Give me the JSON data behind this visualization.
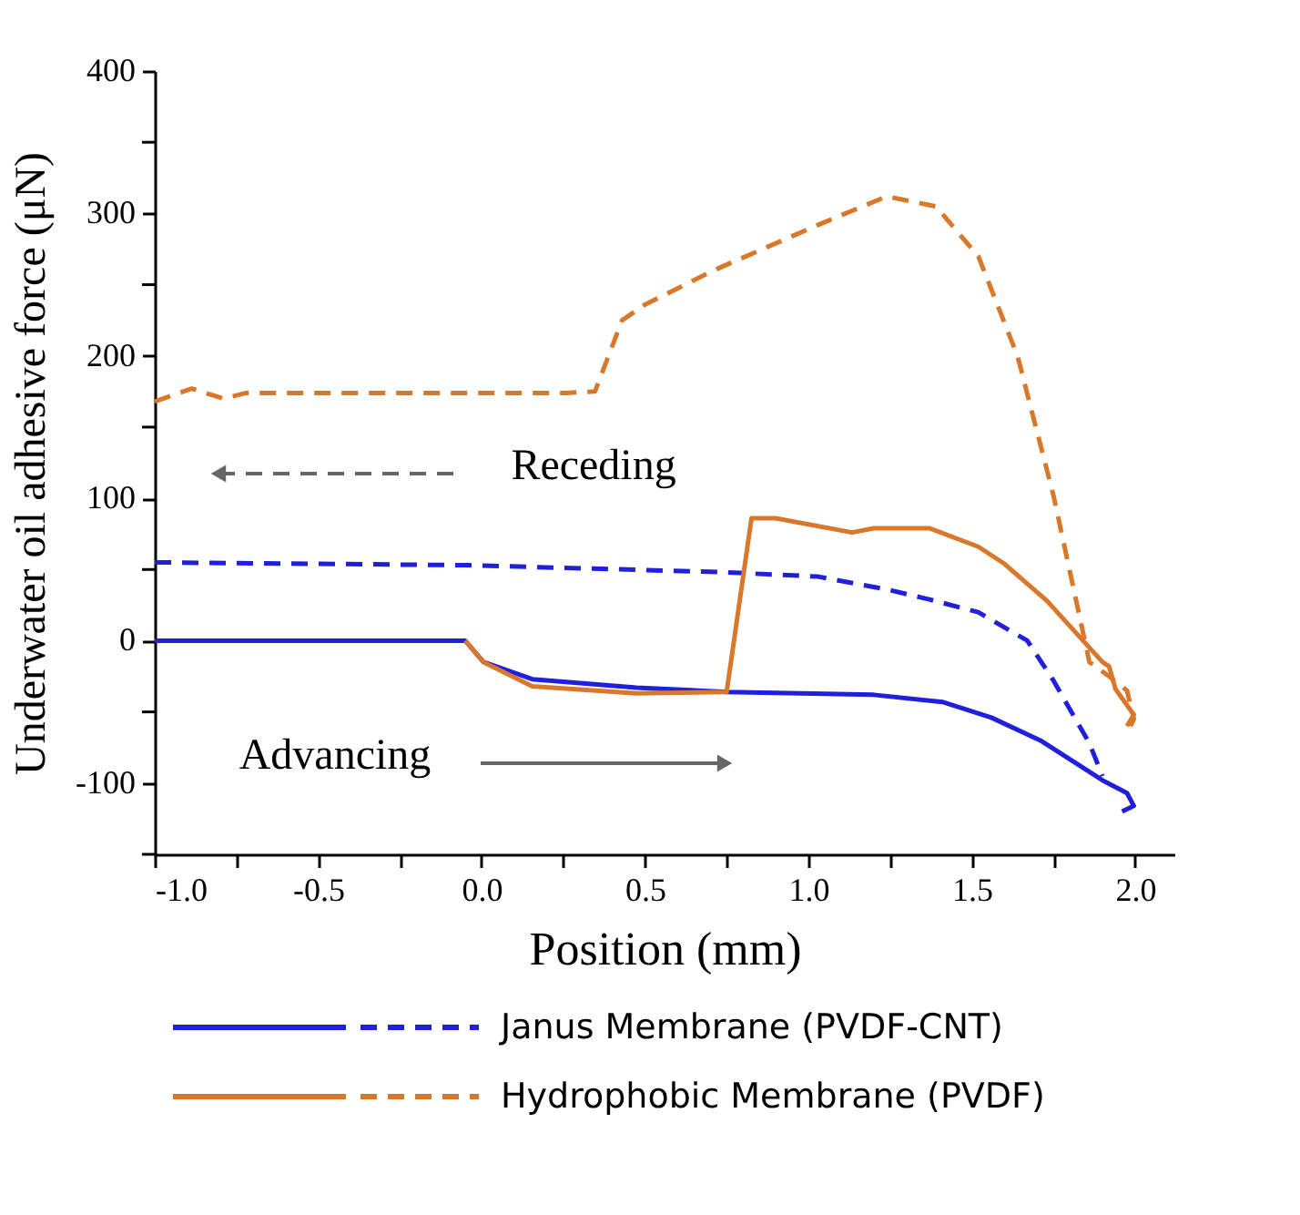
{
  "chart_data": {
    "type": "line",
    "xlabel": "Position (mm)",
    "ylabel": "Underwater oil adhesive force (μN)",
    "xlim": [
      -1.0,
      2.12
    ],
    "ylim": [
      -150,
      400
    ],
    "xticks": [
      {
        "value": -1.0,
        "label": "-1.0"
      },
      {
        "value": -0.75,
        "label": null
      },
      {
        "value": -0.5,
        "label": "-0.5"
      },
      {
        "value": -0.25,
        "label": null
      },
      {
        "value": 0.0,
        "label": "0.0"
      },
      {
        "value": 0.25,
        "label": null
      },
      {
        "value": 0.5,
        "label": "0.5"
      },
      {
        "value": 0.75,
        "label": null
      },
      {
        "value": 1.0,
        "label": "1.0"
      },
      {
        "value": 1.25,
        "label": null
      },
      {
        "value": 1.5,
        "label": "1.5"
      },
      {
        "value": 1.75,
        "label": null
      },
      {
        "value": 2.0,
        "label": "2.0"
      }
    ],
    "yticks": [
      {
        "value": -150,
        "label": null
      },
      -100,
      {
        "value": -50,
        "label": null
      },
      0,
      {
        "value": 50,
        "label": null
      },
      100,
      {
        "value": 150,
        "label": null
      },
      200,
      {
        "value": 250,
        "label": null
      },
      300,
      {
        "value": 350,
        "label": null
      },
      400
    ],
    "grid": false,
    "legend": "bottom",
    "marker": "none",
    "annotations": [
      "Receding",
      "Advancing"
    ],
    "series": [
      {
        "name": "Janus Membrane (PVDF-CNT)",
        "color": "#1f1fdc",
        "line_style": "solid",
        "x": [
          -1.0,
          -0.05,
          0.006,
          0.155,
          0.474,
          0.75,
          1.2,
          1.41,
          1.56,
          1.71,
          1.9,
          1.975,
          1.996,
          1.96
        ],
        "values": [
          0,
          0,
          -15,
          -27,
          -33,
          -36,
          -38,
          -43,
          -54,
          -70,
          -98,
          -107,
          -116,
          -120
        ]
      },
      {
        "color": "#1f1fdc",
        "line_style": "dashed",
        "x": [
          -1.0,
          -0.036,
          0.75,
          1.03,
          1.24,
          1.37,
          1.52,
          1.67,
          1.75,
          1.86,
          1.9
        ],
        "values": [
          55,
          53,
          48,
          45,
          36,
          29,
          20,
          0,
          -28,
          -72,
          -95
        ]
      },
      {
        "name": "Hydrophobic Membrane (PVDF)",
        "color": "#d9782a",
        "line_style": "solid",
        "x": [
          -0.05,
          0.006,
          0.155,
          0.474,
          0.75,
          0.826,
          0.9,
          1.134,
          1.2,
          1.37,
          1.52,
          1.6,
          1.73,
          1.9,
          1.92,
          1.94,
          1.996,
          1.975
        ],
        "values": [
          0,
          -15,
          -32,
          -37,
          -36,
          86,
          86,
          76,
          79,
          79,
          66,
          54,
          28,
          -15,
          -18,
          -34,
          -52,
          -60
        ]
      },
      {
        "color": "#d9782a",
        "line_style": "dashed",
        "x": [
          -1.0,
          -0.887,
          -0.79,
          -0.72,
          0.26,
          0.347,
          0.43,
          0.5,
          0.71,
          1.03,
          1.24,
          1.39,
          1.52,
          1.64,
          1.75,
          1.86,
          1.92,
          1.975,
          1.996,
          1.986
        ],
        "values": [
          168,
          177,
          170,
          174,
          174,
          175,
          225,
          236,
          260,
          292,
          312,
          305,
          270,
          200,
          102,
          -15,
          -25,
          -35,
          -55,
          -60
        ]
      }
    ]
  }
}
